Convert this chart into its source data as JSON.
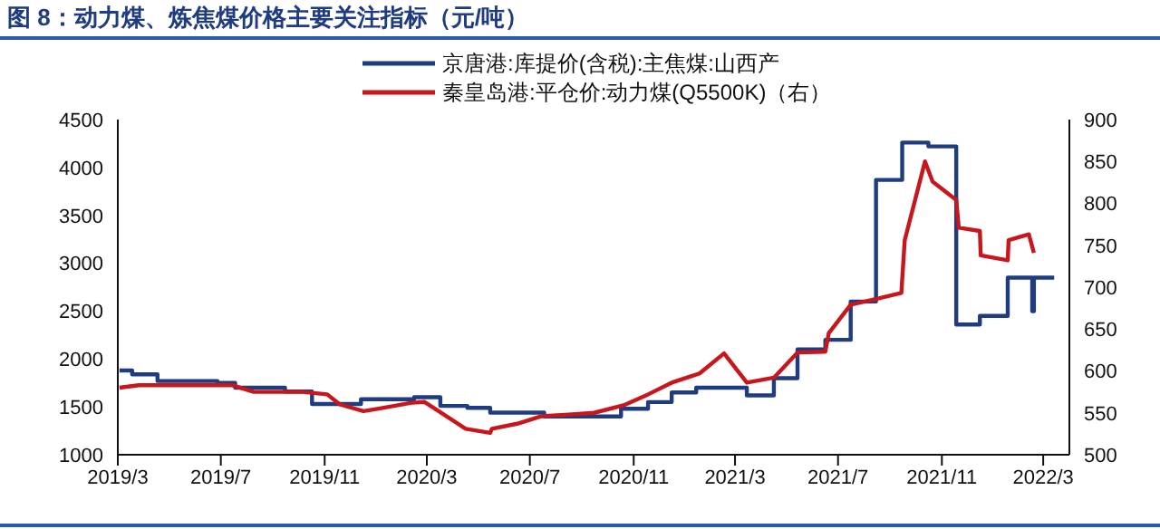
{
  "chart_data": {
    "type": "line",
    "title": "图 8：动力煤、炼焦煤价格主要关注指标（元/吨）",
    "legend": "top",
    "grid": false,
    "xlim": [
      "2019-03",
      "2022-04"
    ],
    "xticks": [
      {
        "value": "2019-03",
        "label": "2019/3"
      },
      {
        "value": "2019-07",
        "label": "2019/7"
      },
      {
        "value": "2019-11",
        "label": "2019/11"
      },
      {
        "value": "2020-03",
        "label": "2020/3"
      },
      {
        "value": "2020-07",
        "label": "2020/7"
      },
      {
        "value": "2020-11",
        "label": "2020/11"
      },
      {
        "value": "2021-03",
        "label": "2021/3"
      },
      {
        "value": "2021-07",
        "label": "2021/7"
      },
      {
        "value": "2021-11",
        "label": "2021/11"
      },
      {
        "value": "2022-03",
        "label": "2022/3"
      }
    ],
    "ylim": [
      1000,
      4500
    ],
    "yticks": [
      1000,
      1500,
      2000,
      2500,
      3000,
      3500,
      4000,
      4500
    ],
    "y2lim": [
      500,
      900
    ],
    "y2ticks": [
      500,
      550,
      600,
      650,
      700,
      750,
      800,
      850,
      900
    ],
    "series": [
      {
        "name": "京唐港:库提价(含税):主焦煤:山西产",
        "type": "step",
        "color": "#1f3c80",
        "x": [
          "2019-03-03",
          "2019-03-18",
          "2019-04-17",
          "2019-06-27",
          "2019-07-18",
          "2019-09-15",
          "2019-10-17",
          "2019-12-14",
          "2020-02-15",
          "2020-03-17",
          "2020-04-18",
          "2020-05-15",
          "2020-07-18",
          "2020-10-17",
          "2020-11-18",
          "2020-12-16",
          "2021-01-14",
          "2021-03-15",
          "2021-04-16",
          "2021-05-14",
          "2021-06-16",
          "2021-07-16",
          "2021-08-15",
          "2021-09-15",
          "2021-10-16",
          "2021-11-18",
          "2021-12-16",
          "2022-01-18",
          "2022-02-16",
          "2022-02-18",
          "2022-03-14"
        ],
        "values": [
          1880,
          1840,
          1770,
          1750,
          1700,
          1660,
          1530,
          1580,
          1600,
          1510,
          1490,
          1440,
          1400,
          1480,
          1550,
          1650,
          1700,
          1620,
          1800,
          2100,
          2200,
          2600,
          3870,
          4260,
          4220,
          2360,
          2450,
          2850,
          2500,
          2850,
          2850
        ]
      },
      {
        "name": "秦皇岛港:平仓价:动力煤(Q5500K)（右）",
        "type": "line",
        "axis": "y2",
        "color": "#c8161d",
        "x": [
          "2019-03-03",
          "2019-03-26",
          "2019-07-14",
          "2019-08-09",
          "2019-10-06",
          "2019-11-04",
          "2019-11-19",
          "2019-12-17",
          "2020-01-04",
          "2020-02-12",
          "2020-02-27",
          "2020-03-15",
          "2020-04-16",
          "2020-05-15",
          "2020-05-17",
          "2020-06-16",
          "2020-07-15",
          "2020-08-16",
          "2020-09-15",
          "2020-10-20",
          "2020-11-18",
          "2020-12-16",
          "2021-01-18",
          "2021-02-16",
          "2021-03-15",
          "2021-04-16",
          "2021-05-14",
          "2021-06-16",
          "2021-06-20",
          "2021-07-16",
          "2021-08-16",
          "2021-09-14",
          "2021-09-18",
          "2021-10-12",
          "2021-10-21",
          "2021-11-18",
          "2021-11-21",
          "2021-12-16",
          "2021-12-17",
          "2022-01-18",
          "2022-01-19",
          "2022-02-12",
          "2022-02-18"
        ],
        "values": [
          580,
          583,
          583,
          575,
          575,
          572,
          560,
          552,
          555,
          562,
          563,
          552,
          531,
          526,
          531,
          537,
          546,
          548,
          550,
          559,
          572,
          586,
          597,
          621,
          586,
          592,
          622,
          623,
          645,
          679,
          686,
          693,
          756,
          850,
          826,
          804,
          771,
          767,
          738,
          732,
          756,
          763,
          741
        ]
      }
    ]
  }
}
